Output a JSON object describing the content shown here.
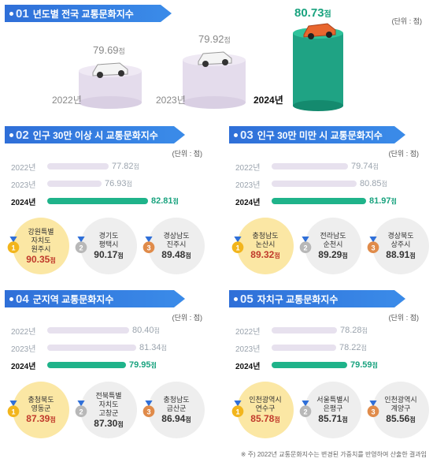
{
  "top": {
    "title_num": "01",
    "title": "년도별 전국 교통문화지수",
    "unit": "(단위 : 점)",
    "years": [
      {
        "label": "2022년",
        "value": "79.69",
        "suffix": "점",
        "highlight": false
      },
      {
        "label": "2023년",
        "value": "79.92",
        "suffix": "점",
        "highlight": false
      },
      {
        "label": "2024년",
        "value": "80.73",
        "suffix": "점",
        "highlight": true
      }
    ]
  },
  "sections": [
    {
      "num": "02",
      "title": "인구 30만 이상 시 교통문화지수",
      "unit": "(단위 : 점)",
      "rows": [
        {
          "year": "2022년",
          "value": 77.82,
          "label": "77.82",
          "suffix": "점"
        },
        {
          "year": "2023년",
          "value": 76.93,
          "label": "76.93",
          "suffix": "점"
        },
        {
          "year": "2024년",
          "value": 82.81,
          "label": "82.81",
          "suffix": "점"
        }
      ],
      "ranks": [
        {
          "rank": "1",
          "line1": "강원특별",
          "line2": "자치도",
          "line3": "원주시",
          "score": "90.35",
          "suffix": "점"
        },
        {
          "rank": "2",
          "line1": "",
          "line2": "경기도",
          "line3": "평택시",
          "score": "90.17",
          "suffix": "점"
        },
        {
          "rank": "3",
          "line1": "",
          "line2": "경상남도",
          "line3": "진주시",
          "score": "89.48",
          "suffix": "점"
        }
      ]
    },
    {
      "num": "03",
      "title": "인구 30만 미만 시 교통문화지수",
      "unit": "(단위 : 점)",
      "rows": [
        {
          "year": "2022년",
          "value": 79.74,
          "label": "79.74",
          "suffix": "점"
        },
        {
          "year": "2023년",
          "value": 80.85,
          "label": "80.85",
          "suffix": "점"
        },
        {
          "year": "2024년",
          "value": 81.97,
          "label": "81.97",
          "suffix": "점"
        }
      ],
      "ranks": [
        {
          "rank": "1",
          "line1": "",
          "line2": "충청남도",
          "line3": "논산시",
          "score": "89.32",
          "suffix": "점"
        },
        {
          "rank": "2",
          "line1": "",
          "line2": "전라남도",
          "line3": "순천시",
          "score": "89.29",
          "suffix": "점"
        },
        {
          "rank": "3",
          "line1": "",
          "line2": "경상북도",
          "line3": "상주시",
          "score": "88.91",
          "suffix": "점"
        }
      ]
    },
    {
      "num": "04",
      "title": "군지역 교통문화지수",
      "unit": "(단위 : 점)",
      "rows": [
        {
          "year": "2022년",
          "value": 80.4,
          "label": "80.40",
          "suffix": "점"
        },
        {
          "year": "2023년",
          "value": 81.34,
          "label": "81.34",
          "suffix": "점"
        },
        {
          "year": "2024년",
          "value": 79.95,
          "label": "79.95",
          "suffix": "점"
        }
      ],
      "ranks": [
        {
          "rank": "1",
          "line1": "",
          "line2": "충청북도",
          "line3": "영동군",
          "score": "87.39",
          "suffix": "점"
        },
        {
          "rank": "2",
          "line1": "전북특별",
          "line2": "자치도",
          "line3": "고창군",
          "score": "87.30",
          "suffix": "점"
        },
        {
          "rank": "3",
          "line1": "",
          "line2": "충청남도",
          "line3": "금산군",
          "score": "86.94",
          "suffix": "점"
        }
      ]
    },
    {
      "num": "05",
      "title": "자치구 교통문화지수",
      "unit": "(단위 : 점)",
      "rows": [
        {
          "year": "2022년",
          "value": 78.28,
          "label": "78.28",
          "suffix": "점"
        },
        {
          "year": "2023년",
          "value": 78.22,
          "label": "78.22",
          "suffix": "점"
        },
        {
          "year": "2024년",
          "value": 79.59,
          "label": "79.59",
          "suffix": "점"
        }
      ],
      "ranks": [
        {
          "rank": "1",
          "line1": "",
          "line2": "인천광역시",
          "line3": "연수구",
          "score": "85.78",
          "suffix": "점"
        },
        {
          "rank": "2",
          "line1": "",
          "line2": "서울특별시",
          "line3": "은평구",
          "score": "85.71",
          "suffix": "점"
        },
        {
          "rank": "3",
          "line1": "",
          "line2": "인천광역시",
          "line3": "계양구",
          "score": "85.56",
          "suffix": "점"
        }
      ]
    }
  ],
  "colors": {
    "accent": "#2f6fd8",
    "green": "#1fb38a",
    "gold": "#fbe7a4",
    "silver": "#c9c9c9",
    "bronze": "#e0955a"
  },
  "footer": "※ 주) 2022년 교통문화지수는 변경된 가중치를 반영하여 산출한 결과임",
  "chart_data": [
    {
      "type": "bar",
      "categories": [
        "2022년",
        "2023년",
        "2024년"
      ],
      "values": [
        79.69,
        79.92,
        80.73
      ],
      "title": "년도별 전국 교통문화지수",
      "ylabel": "점"
    },
    {
      "type": "bar",
      "categories": [
        "2022년",
        "2023년",
        "2024년"
      ],
      "values": [
        77.82,
        76.93,
        82.81
      ],
      "title": "인구 30만 이상 시 교통문화지수"
    },
    {
      "type": "bar",
      "categories": [
        "2022년",
        "2023년",
        "2024년"
      ],
      "values": [
        79.74,
        80.85,
        81.97
      ],
      "title": "인구 30만 미만 시 교통문화지수"
    },
    {
      "type": "bar",
      "categories": [
        "2022년",
        "2023년",
        "2024년"
      ],
      "values": [
        80.4,
        81.34,
        79.95
      ],
      "title": "군지역 교통문화지수"
    },
    {
      "type": "bar",
      "categories": [
        "2022년",
        "2023년",
        "2024년"
      ],
      "values": [
        78.28,
        78.22,
        79.59
      ],
      "title": "자치구 교통문화지수"
    }
  ]
}
